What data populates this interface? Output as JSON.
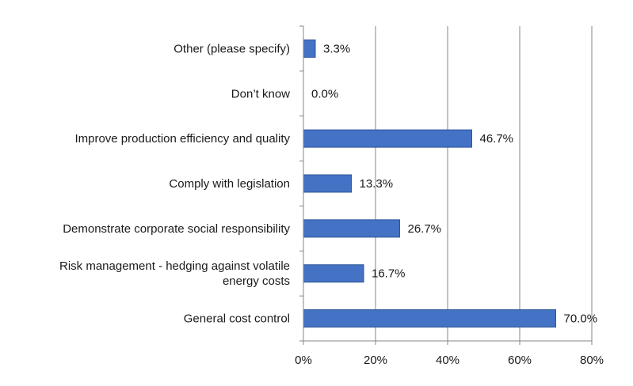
{
  "chart_data": {
    "type": "bar",
    "orientation": "horizontal",
    "categories": [
      "General cost control",
      "Risk management - hedging against volatile energy costs",
      "Demonstrate corporate social responsibility",
      "Comply with legislation",
      "Improve production efficiency and quality",
      "Don’t know",
      "Other (please specify)"
    ],
    "category_lines": [
      [
        "General cost control"
      ],
      [
        "Risk management - hedging against volatile",
        "energy costs"
      ],
      [
        "Demonstrate corporate social responsibility"
      ],
      [
        "Comply with legislation"
      ],
      [
        "Improve production efficiency and quality"
      ],
      [
        "Don’t know"
      ],
      [
        "Other (please specify)"
      ]
    ],
    "values": [
      70.0,
      16.7,
      26.7,
      13.3,
      46.7,
      0.0,
      3.3
    ],
    "data_labels": [
      "70.0%",
      "16.7%",
      "26.7%",
      "13.3%",
      "46.7%",
      "0.0%",
      "3.3%"
    ],
    "xlim": [
      0,
      80
    ],
    "x_ticks": [
      0,
      20,
      40,
      60,
      80
    ],
    "x_tick_labels": [
      "0%",
      "20%",
      "40%",
      "60%",
      "80%"
    ],
    "grid": "vertical",
    "legend": "none",
    "title": "",
    "xlabel": "",
    "ylabel": "",
    "colors": {
      "bar": "#4472C4",
      "bar_edge": "#2E5597",
      "grid": "#868686",
      "axis": "#868686"
    }
  }
}
